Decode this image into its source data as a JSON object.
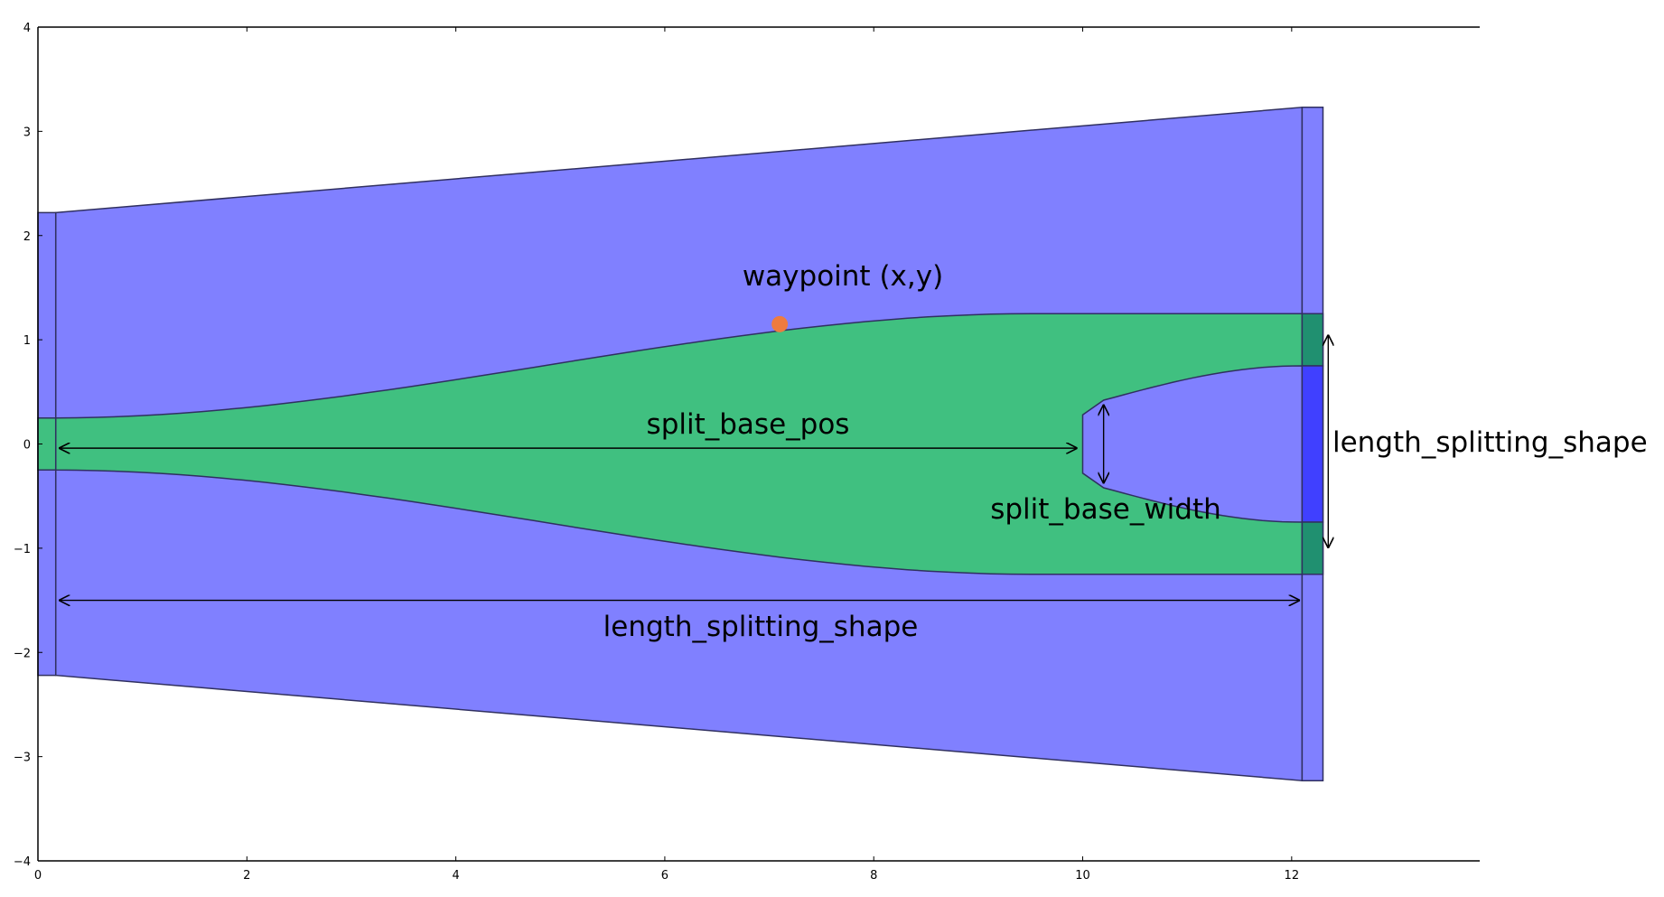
{
  "axes": {
    "xlim": [
      0,
      13.8
    ],
    "ylim": [
      -4,
      4
    ],
    "x_ticks": [
      0,
      2,
      4,
      6,
      8,
      10,
      12
    ],
    "y_ticks": [
      -4,
      -3,
      -2,
      -1,
      0,
      1,
      2,
      3,
      4
    ],
    "x_tick_labels": [
      "0",
      "2",
      "4",
      "6",
      "8",
      "10",
      "12"
    ],
    "y_tick_labels": [
      "−4",
      "−3",
      "−2",
      "−1",
      "0",
      "1",
      "2",
      "3",
      "4"
    ],
    "grid": false
  },
  "colors": {
    "background_region": "#8080ff",
    "splitter_region": "#40c080",
    "port_green": "#209070",
    "port_blue": "#4040ff",
    "outline": "#303060",
    "waypoint_marker": "#ee7b3f",
    "annotation": "#000000"
  },
  "annotations": {
    "waypoint": "waypoint (x,y)",
    "split_base_pos": "split_base_pos",
    "split_base_width": "split_base_width",
    "length_vertical": "length_splitting_shape",
    "length_horizontal": "length_splitting_shape"
  },
  "shapes": {
    "outer_left_x": 0.17,
    "outer_right_x": 12.1,
    "outer_left_half_height": 2.22,
    "outer_right_half_height": 3.23,
    "input_port": {
      "x": [
        0,
        0.17
      ],
      "half_height": 2.22
    },
    "output_port": {
      "x": [
        12.1,
        12.3
      ],
      "half_height": 3.23
    },
    "input_half_width": 0.25,
    "output_arm_outer": 1.25,
    "output_arm_inner": 0.75,
    "split_base_x": 10.0,
    "split_base_half_width": 0.28,
    "split_tip_x": 10.2,
    "split_tip_half_width": 0.42,
    "waypoint": {
      "x": 7.1,
      "y": 1.15
    }
  }
}
